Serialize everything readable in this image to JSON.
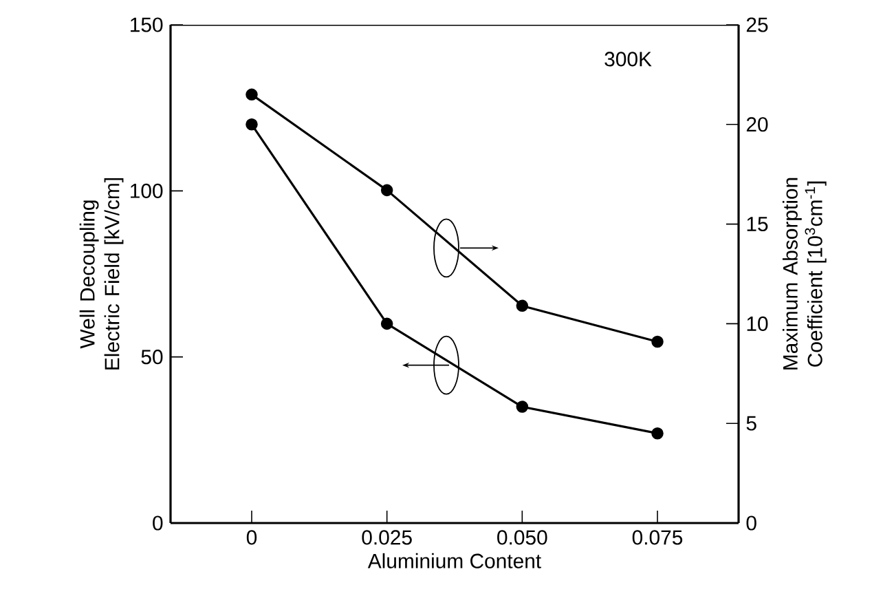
{
  "chart_data": {
    "type": "line",
    "xlabel": "Aluminium Content",
    "ylabel": "Well Decoupling Electric Field [kV/cm]",
    "y2label": "Maximum Absorption Coefficient [10$^{3}$cm$^{-1}$]",
    "annotations": [
      "300K"
    ],
    "x": [
      0,
      0.025,
      0.05,
      0.075
    ],
    "xlim": [
      -0.015,
      0.09
    ],
    "xticks": [
      0,
      0.025,
      {
        "value": 0.05,
        "label": "0.050"
      },
      0.075
    ],
    "ylim": [
      0,
      150
    ],
    "yticks": [
      0,
      50,
      100,
      150
    ],
    "y2lim": [
      0,
      25
    ],
    "y2ticks": [
      0,
      5,
      10,
      15,
      20,
      25
    ],
    "marker": "circle",
    "line_style": "solid",
    "series": [
      {
        "color": "#000000",
        "values": [
          120,
          60,
          35,
          27
        ]
      },
      {
        "color": "#000000",
        "axis": "y2",
        "values": [
          21.5,
          16.7,
          10.9,
          9.1
        ]
      }
    ]
  }
}
